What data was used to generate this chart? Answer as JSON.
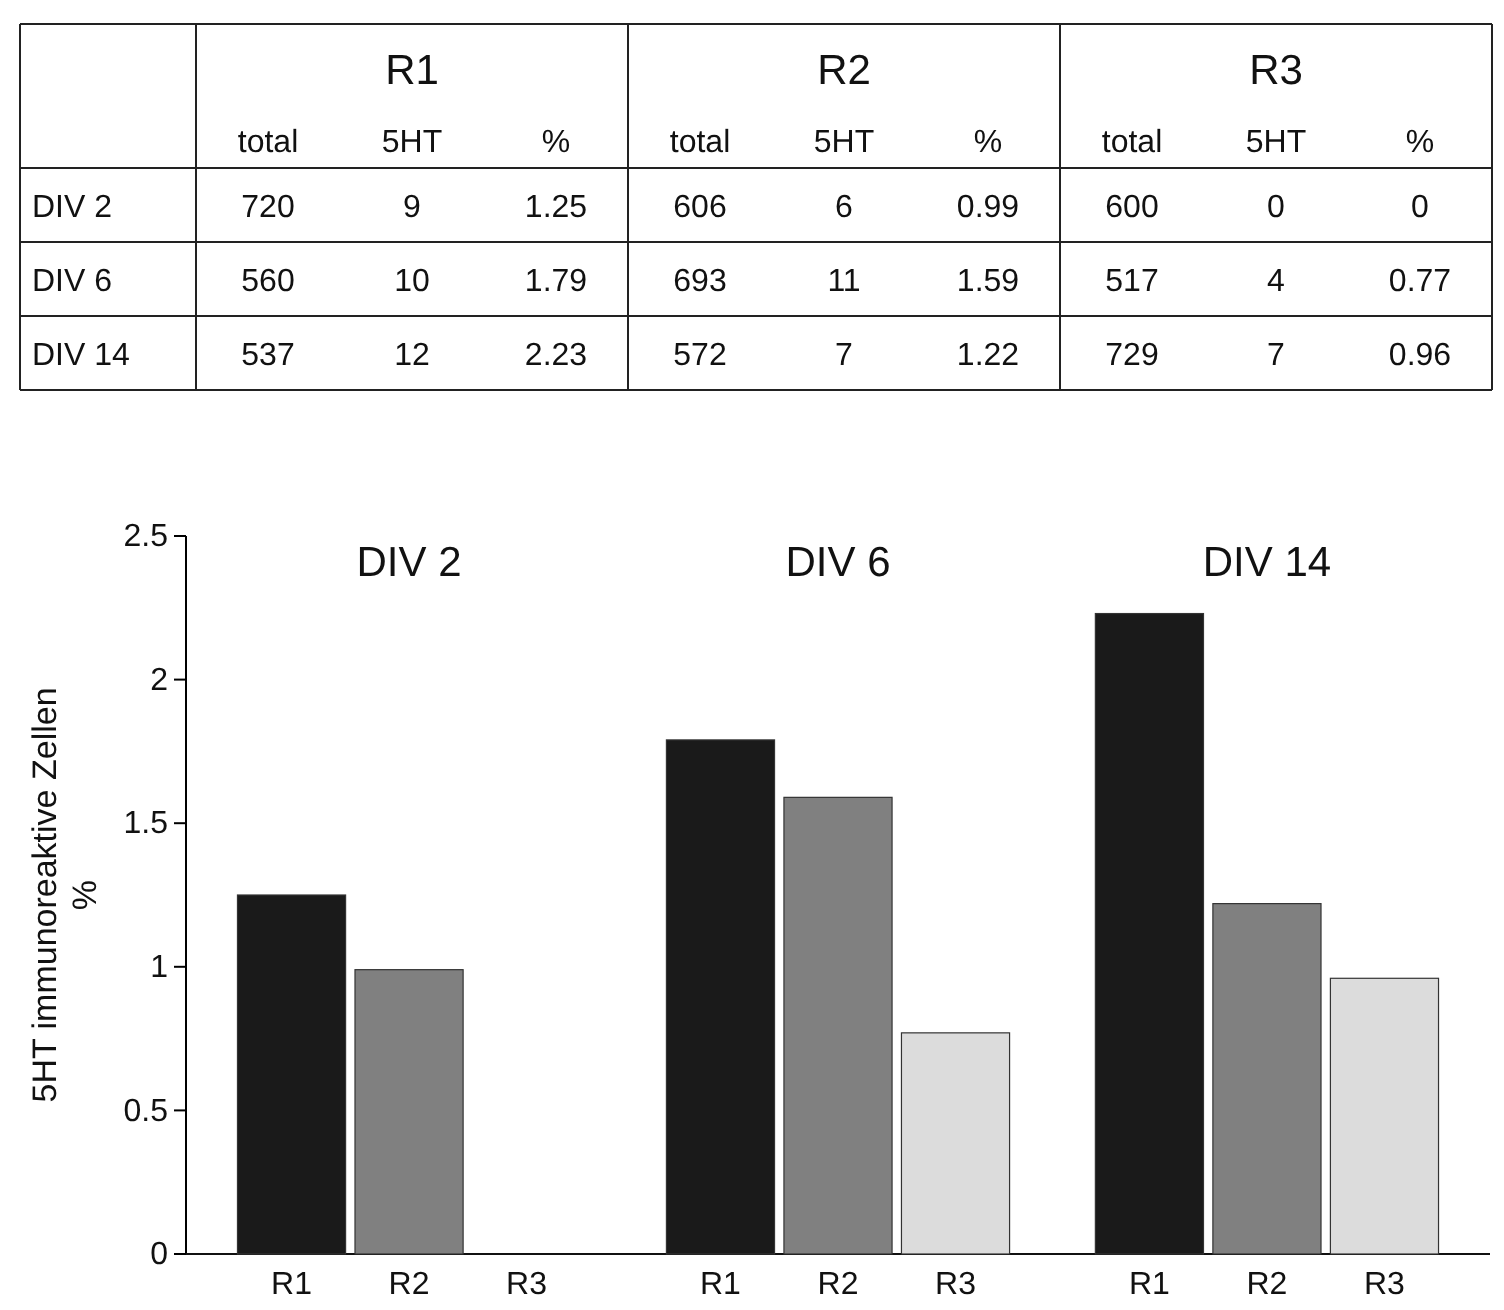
{
  "chart_data": [
    {
      "type": "heatmap",
      "data_labels": true,
      "annotations": [
        "R1",
        "R2",
        "R3"
      ],
      "categories": [
        "total",
        "5HT",
        "%",
        "total",
        "5HT",
        "%",
        "total",
        "5HT",
        "%"
      ],
      "y_categories": [
        "DIV 2",
        "DIV 6",
        "DIV 14"
      ],
      "cells": [
        [
          720,
          9,
          1.25,
          606,
          6,
          0.99,
          600,
          0,
          0
        ],
        [
          560,
          10,
          1.79,
          693,
          11,
          1.59,
          517,
          4,
          0.77
        ],
        [
          537,
          12,
          2.23,
          572,
          7,
          1.22,
          729,
          7,
          0.96
        ]
      ]
    },
    {
      "type": "bar",
      "ylabel": "5HT immunoreaktive Zellen\n%",
      "categories": [
        "DIV 2",
        "DIV 6",
        "DIV 14"
      ],
      "series": [
        {
          "name": "R1",
          "color": "#1a1a1a",
          "values": [
            1.25,
            1.79,
            2.23
          ]
        },
        {
          "name": "R2",
          "color": "#808080",
          "values": [
            0.99,
            1.59,
            1.22
          ]
        },
        {
          "name": "R3",
          "color": "#dcdcdc",
          "values": [
            0,
            0.77,
            0.96
          ]
        }
      ],
      "ylim": [
        0,
        2.5
      ],
      "yticks": [
        0,
        0.5,
        1,
        1.5,
        2,
        2.5
      ],
      "grid": false,
      "legend": false
    }
  ]
}
